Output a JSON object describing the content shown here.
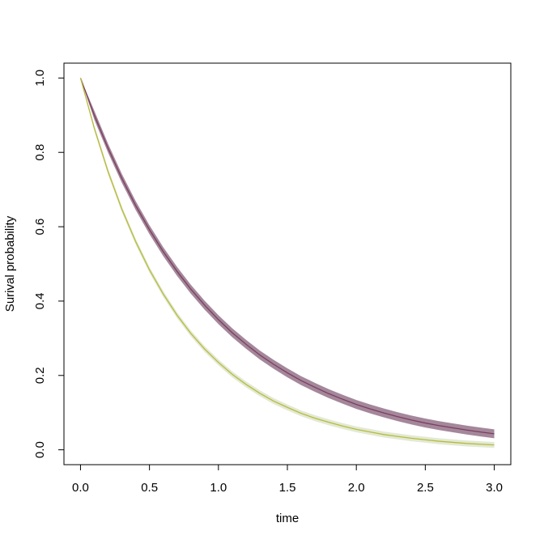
{
  "chart_data": {
    "type": "line",
    "x_label": "time",
    "y_label": "Surival probability",
    "x": [
      0,
      0.1,
      0.2,
      0.3,
      0.4,
      0.5,
      0.6,
      0.7,
      0.8,
      0.9,
      1.0,
      1.1,
      1.2,
      1.3,
      1.4,
      1.5,
      1.6,
      1.7,
      1.8,
      1.9,
      2.0,
      2.1,
      2.2,
      2.3,
      2.4,
      2.5,
      2.6,
      2.7,
      2.8,
      2.9,
      3.0
    ],
    "series": [
      {
        "color": "#7b3f5e",
        "band_color": "#9a7a90",
        "values": [
          1,
          0.9,
          0.811,
          0.73,
          0.657,
          0.592,
          0.533,
          0.48,
          0.432,
          0.389,
          0.35,
          0.315,
          0.284,
          0.255,
          0.23,
          0.207,
          0.186,
          0.168,
          0.151,
          0.136,
          0.122,
          0.11,
          0.099,
          0.089,
          0.08,
          0.072,
          0.065,
          0.059,
          0.053,
          0.048,
          0.043
        ],
        "lower": [
          1,
          0.888,
          0.799,
          0.718,
          0.645,
          0.58,
          0.521,
          0.468,
          0.42,
          0.377,
          0.338,
          0.303,
          0.272,
          0.243,
          0.218,
          0.195,
          0.174,
          0.156,
          0.139,
          0.124,
          0.11,
          0.098,
          0.087,
          0.077,
          0.068,
          0.06,
          0.053,
          0.047,
          0.041,
          0.036,
          0.031
        ],
        "upper": [
          1,
          0.912,
          0.823,
          0.742,
          0.669,
          0.604,
          0.545,
          0.492,
          0.444,
          0.401,
          0.362,
          0.327,
          0.296,
          0.267,
          0.242,
          0.219,
          0.198,
          0.18,
          0.163,
          0.148,
          0.134,
          0.122,
          0.111,
          0.101,
          0.092,
          0.084,
          0.077,
          0.071,
          0.065,
          0.06,
          0.055
        ]
      },
      {
        "color": "#b8bb3a",
        "band_color": "#dfe7cf",
        "values": [
          1,
          0.865,
          0.748,
          0.647,
          0.56,
          0.484,
          0.419,
          0.362,
          0.313,
          0.271,
          0.235,
          0.203,
          0.176,
          0.152,
          0.131,
          0.114,
          0.098,
          0.085,
          0.074,
          0.064,
          0.055,
          0.048,
          0.041,
          0.036,
          0.031,
          0.027,
          0.023,
          0.02,
          0.017,
          0.015,
          0.013
        ],
        "lower": [
          1,
          0.857,
          0.74,
          0.639,
          0.552,
          0.476,
          0.411,
          0.354,
          0.305,
          0.263,
          0.227,
          0.195,
          0.168,
          0.144,
          0.123,
          0.106,
          0.09,
          0.077,
          0.066,
          0.056,
          0.047,
          0.04,
          0.033,
          0.028,
          0.023,
          0.019,
          0.015,
          0.012,
          0.009,
          0.007,
          0.005
        ],
        "upper": [
          1,
          0.873,
          0.756,
          0.655,
          0.568,
          0.492,
          0.427,
          0.37,
          0.321,
          0.279,
          0.243,
          0.211,
          0.184,
          0.16,
          0.139,
          0.122,
          0.106,
          0.093,
          0.082,
          0.072,
          0.063,
          0.056,
          0.049,
          0.044,
          0.039,
          0.035,
          0.031,
          0.028,
          0.025,
          0.023,
          0.021
        ]
      }
    ],
    "xlim": [
      -0.12,
      3.12
    ],
    "ylim": [
      -0.04,
      1.04
    ],
    "xticks": [
      {
        "value": 0,
        "label": "0.0"
      },
      {
        "value": 0.5,
        "label": "0.5"
      },
      {
        "value": 1,
        "label": "1.0"
      },
      {
        "value": 1.5,
        "label": "1.5"
      },
      {
        "value": 2,
        "label": "2.0"
      },
      {
        "value": 2.5,
        "label": "2.5"
      },
      {
        "value": 3,
        "label": "3.0"
      }
    ],
    "yticks": [
      {
        "value": 0,
        "label": "0.0"
      },
      {
        "value": 0.2,
        "label": "0.2"
      },
      {
        "value": 0.4,
        "label": "0.4"
      },
      {
        "value": 0.6,
        "label": "0.6"
      },
      {
        "value": 0.8,
        "label": "0.8"
      },
      {
        "value": 1,
        "label": "1.0"
      }
    ],
    "grid": false
  }
}
